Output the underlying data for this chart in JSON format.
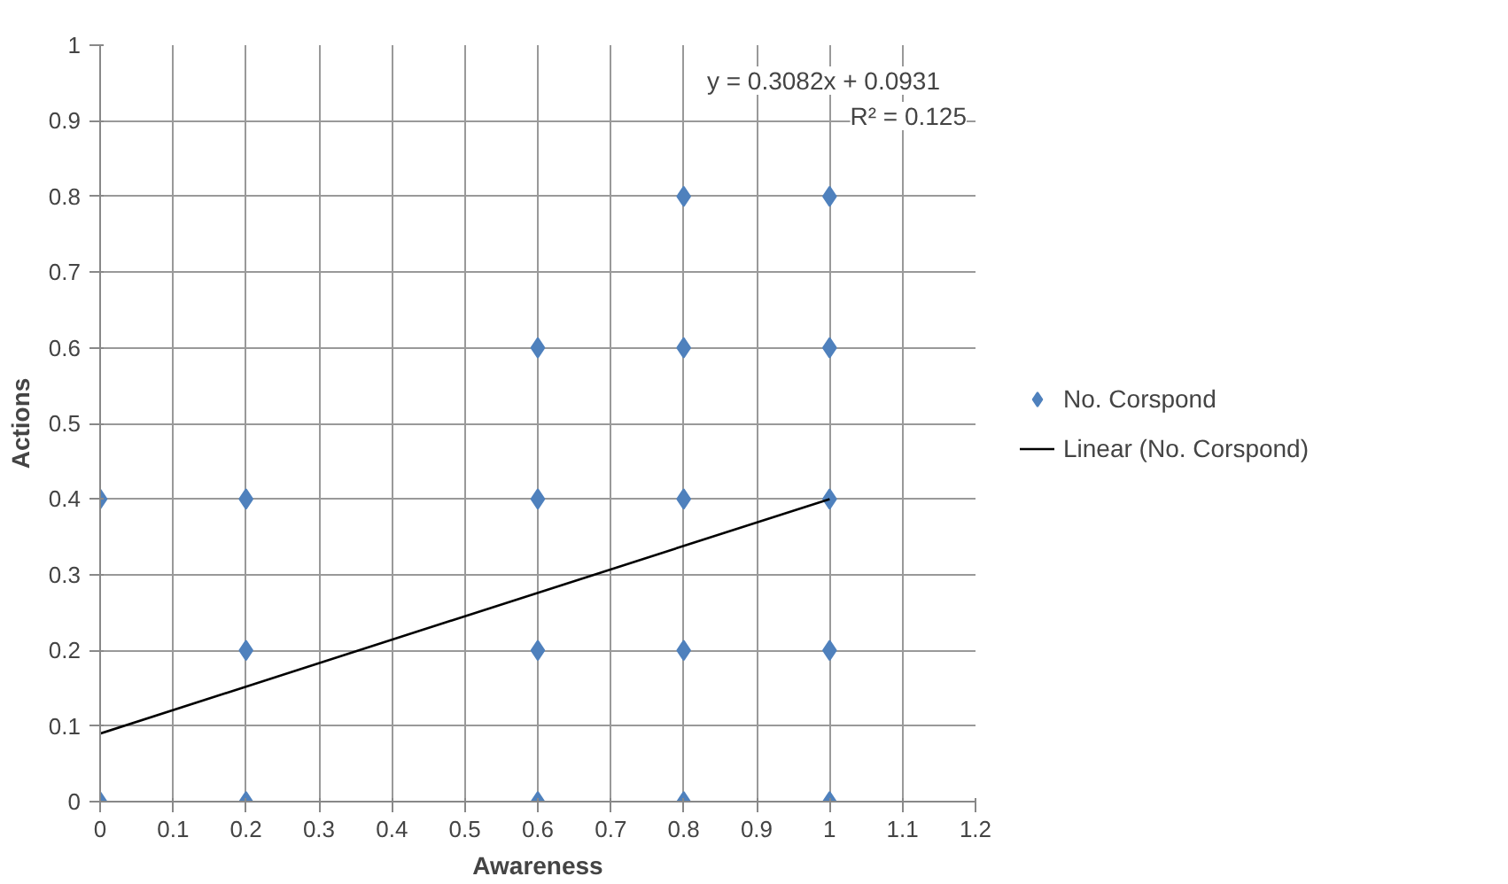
{
  "chart_data": {
    "type": "scatter",
    "xlabel": "Awareness",
    "ylabel": "Actions",
    "xlim": [
      0,
      1.2
    ],
    "xticks": [
      0,
      0.1,
      0.2,
      0.3,
      0.4,
      0.5,
      0.6,
      0.7,
      0.8,
      0.9,
      1,
      1.1,
      1.2
    ],
    "ylim": [
      0,
      1
    ],
    "yticks": [
      0,
      0.1,
      0.2,
      0.3,
      0.4,
      0.5,
      0.6,
      0.7,
      0.8,
      0.9,
      1
    ],
    "grid": true,
    "legend": "right",
    "annotations": [
      "y = 0.3082x + 0.0931",
      "R² = 0.125"
    ],
    "series": [
      {
        "name": "No. Corspond",
        "marker": "diamond",
        "color": "#4f81bd",
        "x": [
          0,
          0,
          0.2,
          0.2,
          0.2,
          0.6,
          0.6,
          0.6,
          0.6,
          0.8,
          0.8,
          0.8,
          0.8,
          0.8,
          1,
          1,
          1,
          1,
          1
        ],
        "values": [
          0.4,
          0,
          0.4,
          0.2,
          0,
          0.6,
          0.4,
          0.2,
          0,
          0.8,
          0.6,
          0.4,
          0.2,
          0,
          0.8,
          0.6,
          0.4,
          0.2,
          0
        ]
      },
      {
        "name": "Linear (No. Corspond)",
        "type": "line",
        "color": "#000000",
        "line_style": "solid",
        "x": [
          0,
          1
        ],
        "values": [
          0.09,
          0.4
        ]
      }
    ]
  }
}
